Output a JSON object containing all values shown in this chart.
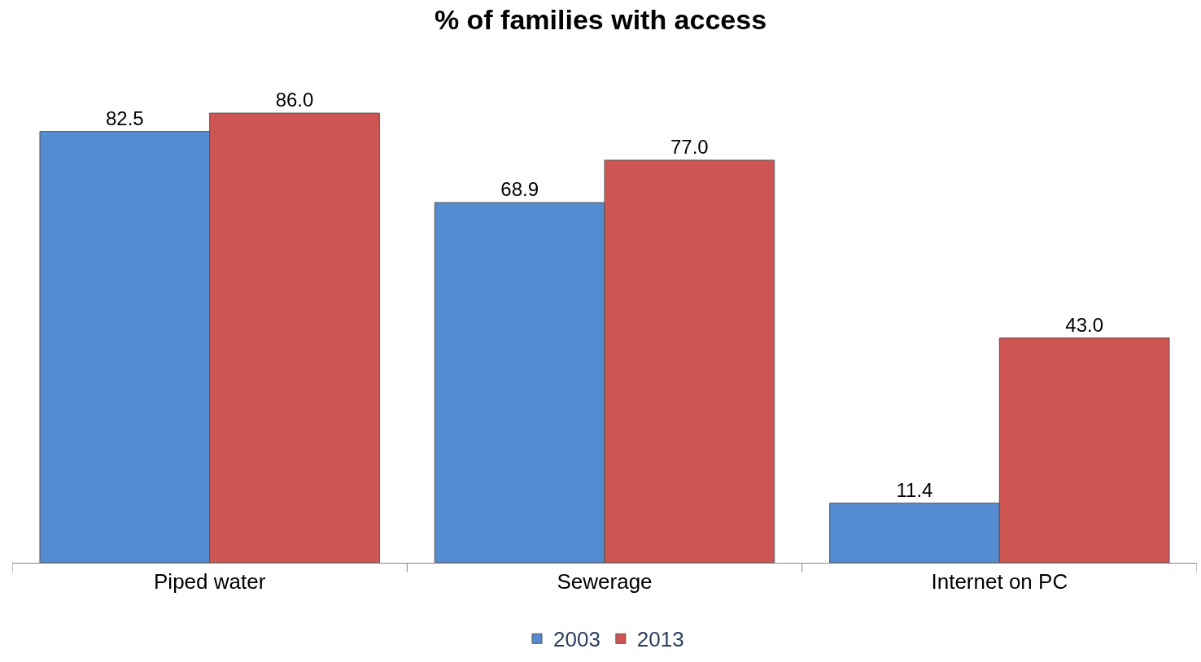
{
  "chart_data": {
    "type": "bar",
    "title": "% of families with access",
    "categories": [
      "Piped water",
      "Sewerage",
      "Internet on PC"
    ],
    "series": [
      {
        "name": "2003",
        "color": "#558bd0",
        "values": [
          82.5,
          68.9,
          11.4
        ],
        "value_labels": [
          "82.5",
          "68.9",
          "11.4"
        ]
      },
      {
        "name": "2013",
        "color": "#cf5552",
        "values": [
          86.0,
          77.0,
          43.0
        ],
        "value_labels": [
          "86.0",
          "77.0",
          "43.0"
        ]
      }
    ],
    "legend": "bottom",
    "tick_labels": "x"
  }
}
